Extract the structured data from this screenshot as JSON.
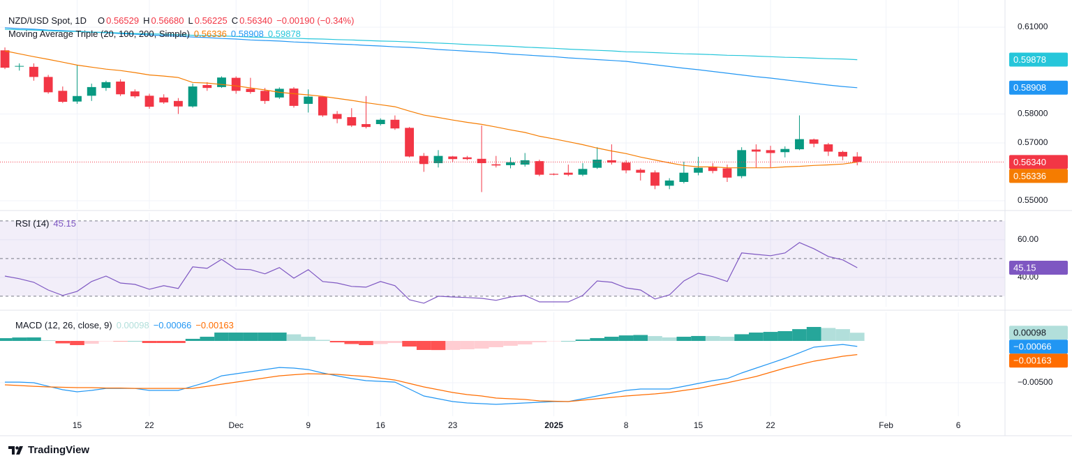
{
  "header": {
    "symbol": "NZD/USD Spot, 1D",
    "ohlc": [
      {
        "key": "O",
        "value": "0.56529"
      },
      {
        "key": "H",
        "value": "0.56680"
      },
      {
        "key": "L",
        "value": "0.56225"
      },
      {
        "key": "C",
        "value": "0.56340"
      }
    ],
    "change": "−0.00190 (−0.34%)"
  },
  "x_axis": {
    "xlim": [
      -0.34,
      69.23
    ],
    "xticks": [
      {
        "value": 5,
        "label": "15"
      },
      {
        "value": 10,
        "label": "22"
      },
      {
        "value": 16,
        "label": "Dec"
      },
      {
        "value": 21,
        "label": "9"
      },
      {
        "value": 26,
        "label": "16"
      },
      {
        "value": 31,
        "label": "23"
      },
      {
        "value": 38,
        "label": "2025",
        "bold": true
      },
      {
        "value": 43,
        "label": "8"
      },
      {
        "value": 48,
        "label": "15"
      },
      {
        "value": 53,
        "label": "22"
      },
      {
        "value": 61,
        "label": "Feb"
      },
      {
        "value": 66,
        "label": "6"
      }
    ],
    "grid": true
  },
  "chart_data": [
    {
      "type": "candlestick",
      "up_color": "#089981",
      "down_color": "#f23645",
      "last_label": "0.56340",
      "ylim": [
        0.5471,
        0.6194
      ],
      "yticks": [
        {
          "value": 0.55,
          "label": "0.55000"
        },
        {
          "value": 0.57,
          "label": "0.57000"
        },
        {
          "value": 0.58,
          "label": "0.58000"
        },
        {
          "value": 0.61,
          "label": "0.61000"
        }
      ],
      "grid": true,
      "open": [
        0.602,
        0.5966,
        0.5963,
        0.5928,
        0.588,
        0.5843,
        0.5863,
        0.589,
        0.5912,
        0.5878,
        0.5863,
        0.5857,
        0.5845,
        0.5826,
        0.59,
        0.5893,
        0.5925,
        0.5887,
        0.588,
        0.5857,
        0.5888,
        0.5835,
        0.586,
        0.58,
        0.5789,
        0.5765,
        0.5765,
        0.578,
        0.5752,
        0.5655,
        0.563,
        0.5653,
        0.565,
        0.5645,
        0.5626,
        0.5623,
        0.5625,
        0.5637,
        0.5593,
        0.5597,
        0.559,
        0.5614,
        0.564,
        0.5632,
        0.5607,
        0.5598,
        0.5552,
        0.5565,
        0.5597,
        0.5618,
        0.5612,
        0.5585,
        0.5677,
        0.5675,
        0.5668,
        0.5678,
        0.5712,
        0.5695,
        0.5669,
        0.56529
      ],
      "high": [
        0.603,
        0.5975,
        0.5975,
        0.5935,
        0.5895,
        0.597,
        0.5905,
        0.5915,
        0.592,
        0.5885,
        0.587,
        0.5868,
        0.5855,
        0.5905,
        0.591,
        0.593,
        0.593,
        0.5925,
        0.589,
        0.5892,
        0.5893,
        0.5885,
        0.5862,
        0.581,
        0.582,
        0.5862,
        0.5785,
        0.5795,
        0.5755,
        0.5665,
        0.5675,
        0.5655,
        0.5655,
        0.576,
        0.5655,
        0.565,
        0.5665,
        0.5642,
        0.5595,
        0.5625,
        0.563,
        0.5685,
        0.5695,
        0.564,
        0.5612,
        0.5605,
        0.5578,
        0.5635,
        0.5652,
        0.563,
        0.5625,
        0.5685,
        0.5695,
        0.569,
        0.5688,
        0.5795,
        0.5715,
        0.57,
        0.5673,
        0.5668
      ],
      "low": [
        0.5955,
        0.595,
        0.5915,
        0.587,
        0.5838,
        0.5835,
        0.5845,
        0.588,
        0.5862,
        0.5855,
        0.5818,
        0.5835,
        0.58,
        0.5822,
        0.588,
        0.589,
        0.587,
        0.587,
        0.5835,
        0.5852,
        0.5822,
        0.5805,
        0.579,
        0.5768,
        0.5755,
        0.575,
        0.576,
        0.5745,
        0.565,
        0.56,
        0.5615,
        0.5635,
        0.564,
        0.553,
        0.5615,
        0.5612,
        0.5618,
        0.5585,
        0.5588,
        0.5585,
        0.5585,
        0.561,
        0.5625,
        0.5595,
        0.557,
        0.554,
        0.554,
        0.556,
        0.5588,
        0.5595,
        0.5565,
        0.5578,
        0.5615,
        0.5615,
        0.565,
        0.5675,
        0.5685,
        0.5655,
        0.564,
        0.56225
      ],
      "close": [
        0.596,
        0.5966,
        0.5928,
        0.5875,
        0.5842,
        0.5862,
        0.5893,
        0.591,
        0.5868,
        0.5861,
        0.5825,
        0.584,
        0.5826,
        0.5895,
        0.589,
        0.5926,
        0.588,
        0.5876,
        0.5845,
        0.5887,
        0.5828,
        0.586,
        0.5795,
        0.5783,
        0.576,
        0.5755,
        0.578,
        0.575,
        0.5653,
        0.5627,
        0.5655,
        0.5644,
        0.5644,
        0.563,
        0.5622,
        0.5633,
        0.564,
        0.559,
        0.559,
        0.559,
        0.561,
        0.5642,
        0.5632,
        0.5605,
        0.5597,
        0.5552,
        0.557,
        0.5597,
        0.5614,
        0.5603,
        0.558,
        0.5675,
        0.567,
        0.5665,
        0.5679,
        0.5713,
        0.5697,
        0.567,
        0.5653,
        0.5634
      ],
      "overlay": {
        "title": "Moving Average Triple (20, 100, 200, Simple)",
        "series": [
          {
            "color": "#f57c00",
            "value_label": "0.56336",
            "values": [
              0.6018,
              0.6008,
              0.5998,
              0.5989,
              0.5979,
              0.5969,
              0.5962,
              0.5955,
              0.595,
              0.5943,
              0.5935,
              0.5931,
              0.5926,
              0.5909,
              0.5907,
              0.5902,
              0.5897,
              0.589,
              0.5883,
              0.5875,
              0.587,
              0.5866,
              0.5861,
              0.5854,
              0.5847,
              0.5839,
              0.5832,
              0.5825,
              0.581,
              0.5796,
              0.5788,
              0.5779,
              0.5771,
              0.5764,
              0.5755,
              0.5745,
              0.5736,
              0.5723,
              0.5714,
              0.5704,
              0.5694,
              0.5682,
              0.5672,
              0.5663,
              0.5651,
              0.5641,
              0.5631,
              0.5622,
              0.5617,
              0.5617,
              0.5614,
              0.5614,
              0.5614,
              0.5614,
              0.5617,
              0.5619,
              0.5622,
              0.5624,
              0.5627,
              0.56336
            ]
          },
          {
            "color": "#2196f3",
            "value_label": "0.58908",
            "values": [
              0.6098,
              0.6095,
              0.6093,
              0.609,
              0.6088,
              0.6086,
              0.6083,
              0.6081,
              0.6078,
              0.6076,
              0.6073,
              0.6071,
              0.6069,
              0.6066,
              0.6064,
              0.6061,
              0.6059,
              0.6056,
              0.6054,
              0.6052,
              0.6049,
              0.6047,
              0.6044,
              0.6042,
              0.604,
              0.6037,
              0.6035,
              0.6032,
              0.603,
              0.6027,
              0.6023,
              0.602,
              0.6017,
              0.6014,
              0.6011,
              0.6007,
              0.6004,
              0.6001,
              0.5998,
              0.5994,
              0.5991,
              0.5988,
              0.5985,
              0.5982,
              0.5976,
              0.597,
              0.5964,
              0.5958,
              0.5953,
              0.5947,
              0.5941,
              0.5935,
              0.5929,
              0.5924,
              0.5918,
              0.5912,
              0.5906,
              0.59,
              0.5895,
              0.58908
            ]
          },
          {
            "color": "#26c6da",
            "value_label": "0.59878",
            "values": [
              0.6093,
              0.6091,
              0.609,
              0.6088,
              0.6086,
              0.6085,
              0.6083,
              0.6082,
              0.608,
              0.6078,
              0.6077,
              0.6076,
              0.6074,
              0.6072,
              0.6071,
              0.607,
              0.6068,
              0.6066,
              0.6065,
              0.6063,
              0.6062,
              0.606,
              0.6059,
              0.6057,
              0.6056,
              0.6054,
              0.6052,
              0.6051,
              0.6049,
              0.6047,
              0.6045,
              0.6043,
              0.604,
              0.6038,
              0.6036,
              0.6034,
              0.6031,
              0.6029,
              0.6027,
              0.6024,
              0.6022,
              0.602,
              0.6018,
              0.6015,
              0.6014,
              0.6012,
              0.601,
              0.6008,
              0.6007,
              0.6005,
              0.6003,
              0.6002,
              0.6,
              0.5998,
              0.5996,
              0.5995,
              0.5993,
              0.5991,
              0.599,
              0.59878
            ]
          }
        ]
      }
    },
    {
      "type": "line",
      "title": "RSI (14)",
      "color": "#7e57c2",
      "value_label": "45.15",
      "band_levels": [
        70,
        50,
        30
      ],
      "band_fill": "#7e57c2",
      "ylim": [
        24.4,
        74.4
      ],
      "yticks": [
        {
          "value": 40,
          "label": "40.00"
        },
        {
          "value": 60,
          "label": "60.00"
        }
      ],
      "grid": true,
      "values": [
        40.7,
        39.3,
        37.4,
        33.3,
        30.4,
        32.6,
        37.8,
        40.7,
        37.0,
        36.3,
        33.7,
        35.6,
        34.1,
        45.6,
        44.8,
        49.6,
        44.4,
        44.1,
        41.9,
        45.2,
        39.6,
        44.1,
        37.8,
        37.0,
        35.2,
        34.8,
        37.8,
        35.6,
        28.1,
        26.3,
        30.0,
        29.6,
        29.3,
        28.9,
        27.8,
        29.6,
        30.4,
        27.0,
        27.0,
        27.0,
        30.4,
        38.1,
        37.4,
        34.4,
        33.3,
        28.5,
        30.7,
        38.1,
        42.2,
        40.4,
        37.8,
        53.0,
        52.2,
        51.5,
        53.0,
        58.5,
        55.2,
        51.1,
        49.3,
        45.15
      ]
    },
    {
      "type": "macd",
      "title": "MACD (12, 26, close, 9)",
      "ylim": [
        -0.009,
        0.00342
      ],
      "yticks": [
        {
          "value": -0.005,
          "label": "−0.00500"
        }
      ],
      "grid": true,
      "histogram": {
        "value_label": "0.00098",
        "colors": [
          "#26a69a",
          "#b2dfdb",
          "#ffcdd2",
          "#ff5252"
        ],
        "values": [
          0.00033,
          0.00041,
          0.00042,
          8e-05,
          -0.00029,
          -0.0005,
          -0.00034,
          -4e-05,
          -4e-05,
          0,
          -0.00025,
          -0.00025,
          -0.00025,
          0.00025,
          0.0005,
          0.001,
          0.001,
          0.001,
          0.001,
          0.001,
          0.00079,
          0.0005,
          0.00013,
          -0.00017,
          -0.00037,
          -0.0005,
          -0.00037,
          -0.00025,
          -0.00067,
          -0.00108,
          -0.00109,
          -0.00108,
          -0.001,
          -0.00092,
          -0.00075,
          -0.00058,
          -0.00042,
          -0.00016,
          -4e-05,
          0,
          0.00016,
          0.00034,
          0.0005,
          0.00066,
          0.00071,
          0.00058,
          0.00042,
          0.0005,
          0.00059,
          0.00058,
          0.0005,
          0.0008,
          0.001,
          0.00108,
          0.00117,
          0.00141,
          0.00167,
          0.00155,
          0.00141,
          0.00098
        ]
      },
      "macd": {
        "color": "#2196f3",
        "value_label": "−0.00066",
        "values": [
          -0.00492,
          -0.00492,
          -0.005,
          -0.00542,
          -0.00583,
          -0.00608,
          -0.00592,
          -0.00567,
          -0.00567,
          -0.00567,
          -0.00592,
          -0.00592,
          -0.00592,
          -0.00542,
          -0.00492,
          -0.00417,
          -0.00392,
          -0.00367,
          -0.00342,
          -0.00317,
          -0.00325,
          -0.00342,
          -0.00383,
          -0.00417,
          -0.0045,
          -0.00475,
          -0.00483,
          -0.00492,
          -0.00575,
          -0.00658,
          -0.00692,
          -0.00725,
          -0.00742,
          -0.0075,
          -0.00758,
          -0.0075,
          -0.00742,
          -0.00733,
          -0.00725,
          -0.00725,
          -0.00692,
          -0.00658,
          -0.00625,
          -0.00592,
          -0.00575,
          -0.00575,
          -0.00575,
          -0.00542,
          -0.00508,
          -0.00475,
          -0.0045,
          -0.00383,
          -0.00325,
          -0.00267,
          -0.00208,
          -0.00142,
          -0.00075,
          -0.00058,
          -0.00042,
          -0.00066
        ]
      },
      "signal": {
        "color": "#ff6d00",
        "value_label": "−0.00163",
        "values": [
          -0.00525,
          -0.00533,
          -0.00542,
          -0.0055,
          -0.00554,
          -0.00558,
          -0.00558,
          -0.00563,
          -0.00563,
          -0.00567,
          -0.00567,
          -0.00567,
          -0.00567,
          -0.00567,
          -0.00542,
          -0.00517,
          -0.00492,
          -0.00467,
          -0.00442,
          -0.00417,
          -0.00404,
          -0.00392,
          -0.00396,
          -0.004,
          -0.00413,
          -0.00425,
          -0.00446,
          -0.00467,
          -0.00508,
          -0.0055,
          -0.00583,
          -0.00617,
          -0.00642,
          -0.00658,
          -0.00683,
          -0.00692,
          -0.007,
          -0.00717,
          -0.00721,
          -0.00725,
          -0.00708,
          -0.00692,
          -0.00675,
          -0.00658,
          -0.00646,
          -0.00633,
          -0.00617,
          -0.00592,
          -0.00567,
          -0.00533,
          -0.005,
          -0.00463,
          -0.00425,
          -0.00375,
          -0.00325,
          -0.00283,
          -0.00242,
          -0.00213,
          -0.00183,
          -0.00163
        ]
      }
    }
  ],
  "footer": {
    "brand": "TradingView"
  }
}
